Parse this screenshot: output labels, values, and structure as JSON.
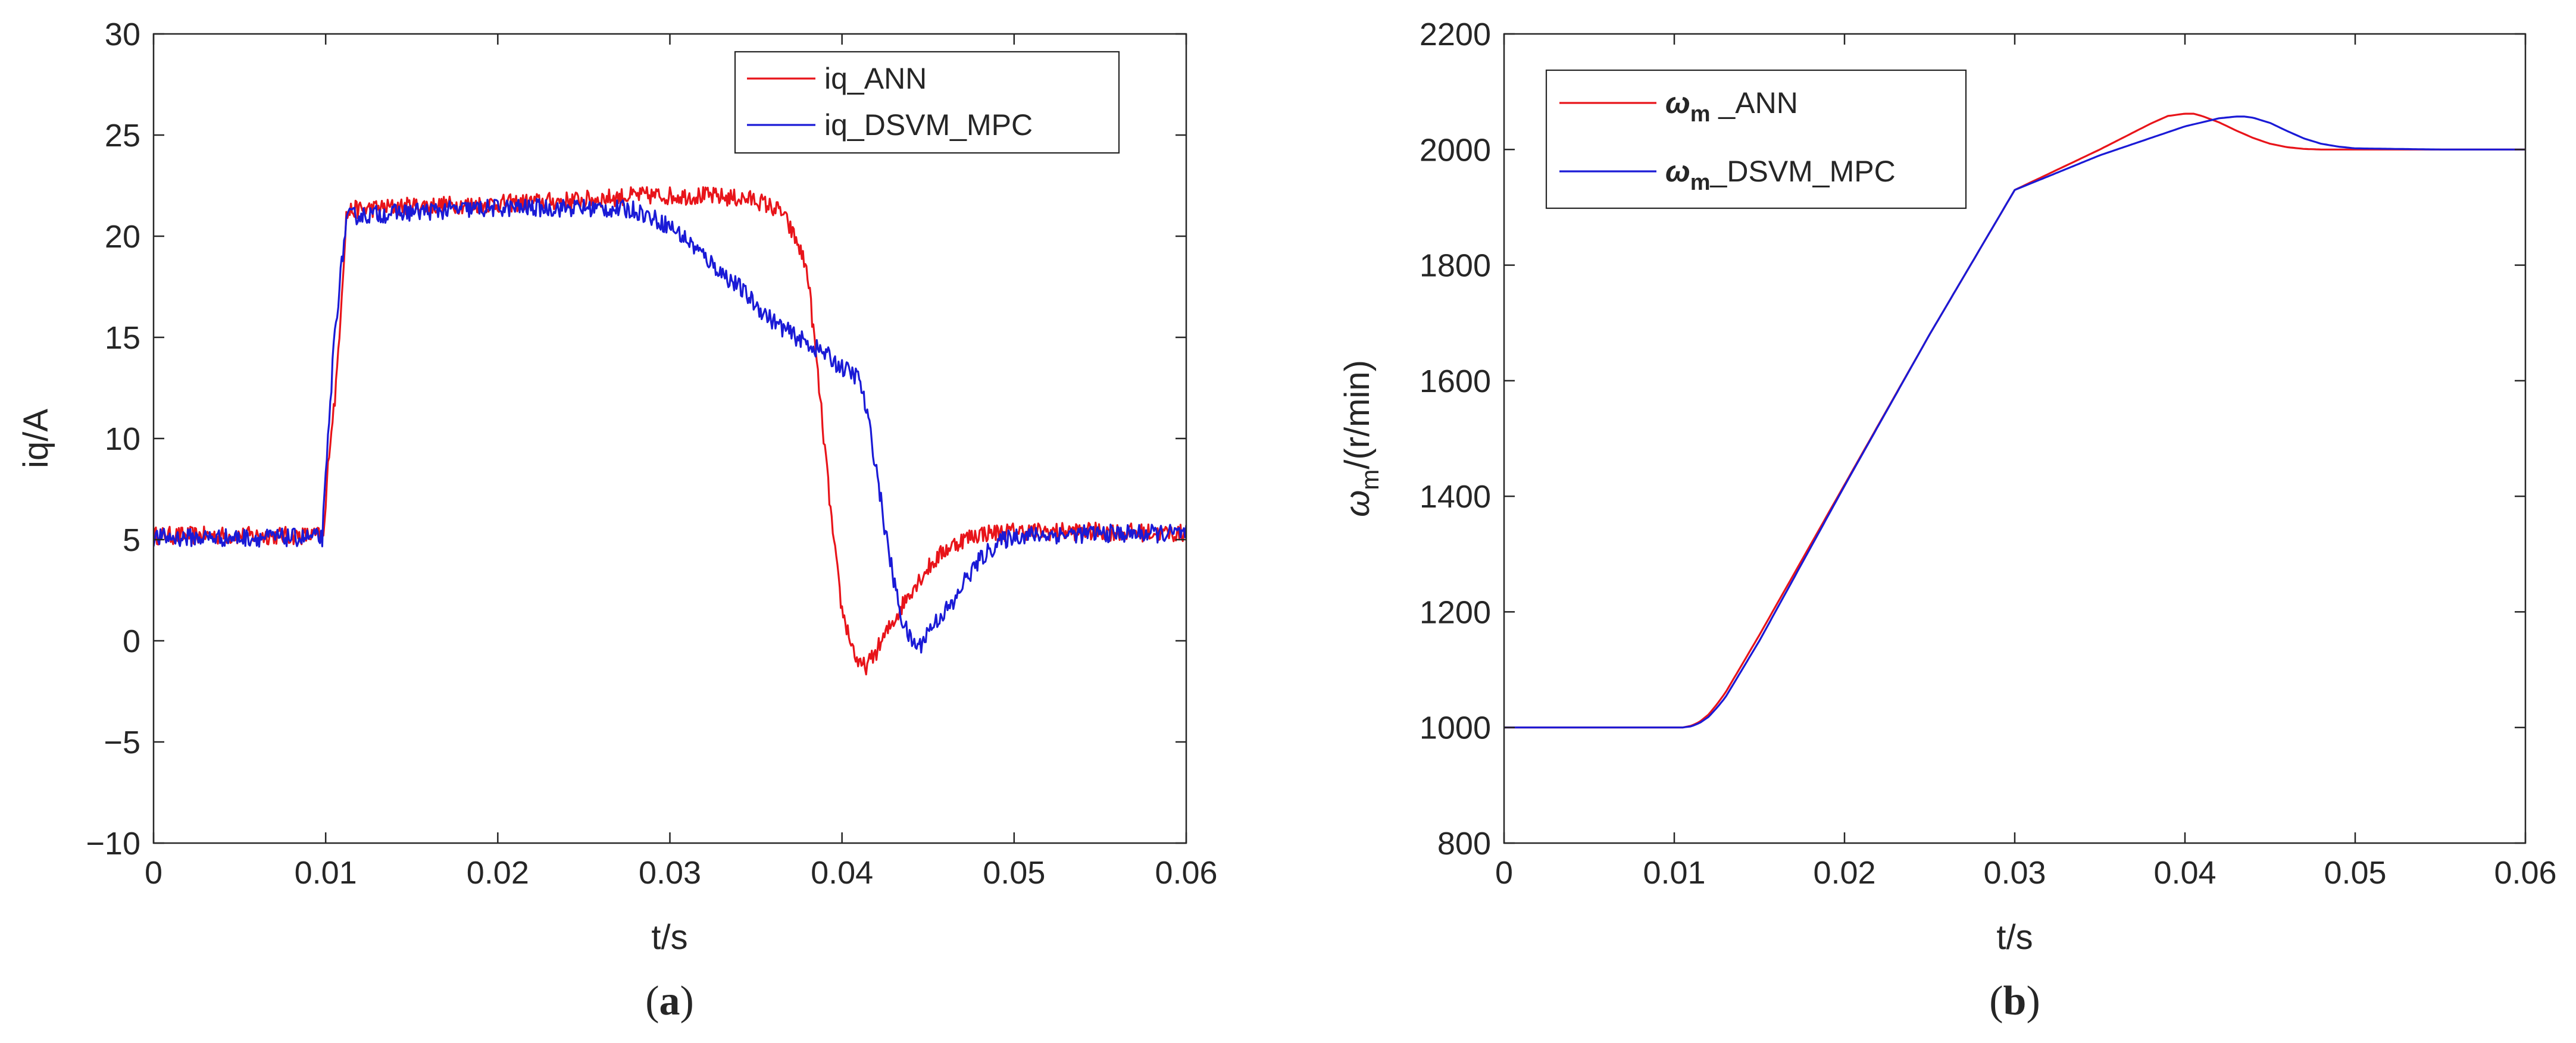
{
  "colors": {
    "ann": "#e8141a",
    "dsvm": "#1a1ad6",
    "axis": "#262626",
    "background": "#ffffff"
  },
  "captions": {
    "a": "(a)",
    "b": "(b)",
    "a_open": "(",
    "a_letter": "a",
    "a_close": ")",
    "b_open": "(",
    "b_letter": "b",
    "b_close": ")"
  },
  "chart_data": [
    {
      "id": "a",
      "type": "line",
      "title": "",
      "xlabel": "t/s",
      "ylabel": "iq/A",
      "xlim": [
        0,
        0.06
      ],
      "ylim": [
        -10,
        30
      ],
      "xticks": [
        0,
        0.01,
        0.02,
        0.03,
        0.04,
        0.05,
        0.06
      ],
      "xtick_labels": [
        "0",
        "0.01",
        "0.02",
        "0.03",
        "0.04",
        "0.05",
        "0.06"
      ],
      "yticks": [
        -10,
        -5,
        0,
        5,
        10,
        15,
        20,
        25,
        30
      ],
      "ytick_labels": [
        "−10",
        "−5",
        "0",
        "5",
        "10",
        "15",
        "20",
        "25",
        "30"
      ],
      "legend_position": "top-right",
      "noise_amplitude": 0.45,
      "series": [
        {
          "name": "iq_ANN",
          "legend_label": "iq_ANN",
          "color": "#e8141a",
          "x": [
            0,
            0.0099,
            0.0102,
            0.0106,
            0.0112,
            0.0115,
            0.015,
            0.02,
            0.025,
            0.028,
            0.032,
            0.035,
            0.0365,
            0.0375,
            0.038,
            0.0385,
            0.039,
            0.0395,
            0.04,
            0.0405,
            0.041,
            0.0415,
            0.042,
            0.043,
            0.044,
            0.045,
            0.046,
            0.047,
            0.048,
            0.05,
            0.055,
            0.06
          ],
          "y": [
            5.2,
            5.2,
            9.5,
            12.5,
            21.0,
            21.3,
            21.5,
            21.6,
            21.8,
            22.0,
            22.0,
            21.8,
            21.2,
            19.5,
            18.2,
            14.0,
            9.5,
            5.0,
            1.5,
            0.0,
            -1.3,
            -1.2,
            -0.5,
            1.0,
            2.5,
            3.6,
            4.5,
            5.0,
            5.3,
            5.4,
            5.4,
            5.3
          ]
        },
        {
          "name": "iq_DSVM_MPC",
          "legend_label": "iq_DSVM_MPC",
          "color": "#1a1ad6",
          "x": [
            0,
            0.0098,
            0.0105,
            0.0112,
            0.0115,
            0.015,
            0.02,
            0.025,
            0.028,
            0.03,
            0.031,
            0.032,
            0.033,
            0.034,
            0.035,
            0.036,
            0.037,
            0.038,
            0.039,
            0.04,
            0.041,
            0.0415,
            0.042,
            0.0425,
            0.043,
            0.0435,
            0.044,
            0.0445,
            0.045,
            0.0455,
            0.046,
            0.0465,
            0.047,
            0.048,
            0.049,
            0.05,
            0.055,
            0.06
          ],
          "y": [
            5.1,
            5.1,
            15.0,
            20.8,
            21.0,
            21.2,
            21.4,
            21.4,
            21.3,
            20.5,
            19.8,
            19.0,
            18.2,
            17.5,
            16.6,
            15.8,
            15.2,
            14.7,
            14.2,
            13.5,
            13.0,
            11.0,
            8.5,
            5.5,
            3.0,
            1.0,
            0.0,
            -0.3,
            0.5,
            1.0,
            1.5,
            1.8,
            2.8,
            4.0,
            4.8,
            5.2,
            5.3,
            5.3
          ]
        }
      ]
    },
    {
      "id": "b",
      "type": "line",
      "title": "",
      "xlabel": "t/s",
      "ylabel": "ωm/(r/min)",
      "ylabel_symbol": "ω",
      "ylabel_subscript": "m",
      "ylabel_unit": "/(r/min)",
      "xlim": [
        0,
        0.06
      ],
      "ylim": [
        800,
        2200
      ],
      "xticks": [
        0,
        0.01,
        0.02,
        0.03,
        0.04,
        0.05,
        0.06
      ],
      "xtick_labels": [
        "0",
        "0.01",
        "0.02",
        "0.03",
        "0.04",
        "0.05",
        "0.06"
      ],
      "yticks": [
        800,
        1000,
        1200,
        1400,
        1600,
        1800,
        2000,
        2200
      ],
      "ytick_labels": [
        "800",
        "1000",
        "1200",
        "1400",
        "1600",
        "1800",
        "2000",
        "2200"
      ],
      "legend_position": "top-left",
      "series": [
        {
          "name": "ωm_ANN",
          "legend_symbol": "ω",
          "legend_sub": "m",
          "legend_suffix": " _ANN",
          "color": "#e8141a",
          "x": [
            0,
            0.0105,
            0.011,
            0.0115,
            0.012,
            0.0125,
            0.013,
            0.015,
            0.02,
            0.025,
            0.03,
            0.035,
            0.038,
            0.039,
            0.04,
            0.0405,
            0.041,
            0.042,
            0.043,
            0.044,
            0.045,
            0.046,
            0.047,
            0.048,
            0.05,
            0.055,
            0.06
          ],
          "y": [
            1000,
            1000,
            1003,
            1010,
            1022,
            1040,
            1060,
            1160,
            1420,
            1680,
            1930,
            2000,
            2045,
            2058,
            2062,
            2062,
            2058,
            2047,
            2033,
            2020,
            2010,
            2004,
            2001,
            2000,
            2000,
            2000,
            2000
          ]
        },
        {
          "name": "ωm_DSVM_MPC",
          "legend_symbol": "ω",
          "legend_sub": "m",
          "legend_suffix": "_DSVM_MPC",
          "color": "#1a1ad6",
          "x": [
            0,
            0.0105,
            0.011,
            0.0115,
            0.012,
            0.0125,
            0.013,
            0.015,
            0.02,
            0.025,
            0.03,
            0.035,
            0.038,
            0.04,
            0.042,
            0.043,
            0.0435,
            0.044,
            0.045,
            0.046,
            0.047,
            0.048,
            0.049,
            0.05,
            0.055,
            0.06
          ],
          "y": [
            1000,
            1000,
            1002,
            1008,
            1018,
            1034,
            1052,
            1150,
            1418,
            1680,
            1930,
            1990,
            2020,
            2040,
            2054,
            2057,
            2057,
            2055,
            2046,
            2032,
            2019,
            2010,
            2005,
            2002,
            2000,
            2000
          ]
        }
      ]
    }
  ]
}
